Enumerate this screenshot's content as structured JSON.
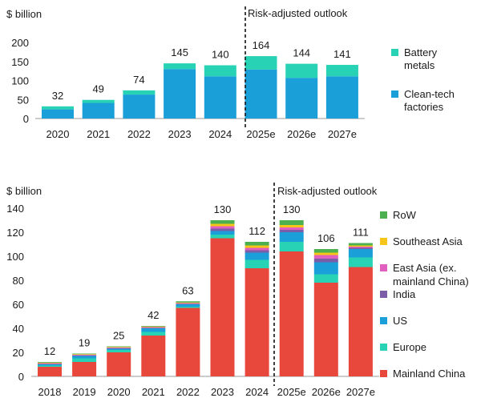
{
  "chart_data": [
    {
      "type": "bar",
      "stacked": true,
      "ylabel": "$ billion",
      "ylim": [
        0,
        200
      ],
      "yticks": [
        0,
        50,
        100,
        150,
        200
      ],
      "categories": [
        "2020",
        "2021",
        "2022",
        "2023",
        "2024",
        "2025e",
        "2026e",
        "2027e"
      ],
      "totals": [
        32,
        49,
        74,
        145,
        140,
        164,
        144,
        141
      ],
      "outlook_label": "Risk-adjusted outlook",
      "outlook_starts_at": "2025e",
      "legend_position": "right",
      "series": [
        {
          "name": "Clean-tech factories",
          "color": "#1a9fd9",
          "values": [
            24,
            41,
            63,
            130,
            111,
            129,
            107,
            111
          ]
        },
        {
          "name": "Battery metals",
          "color": "#27d3b4",
          "values": [
            8,
            8,
            11,
            15,
            29,
            35,
            37,
            30
          ]
        }
      ],
      "legend": [
        {
          "label_lines": [
            "Battery",
            "metals"
          ],
          "color": "#27d3b4"
        },
        {
          "label_lines": [
            "Clean-tech",
            "factories"
          ],
          "color": "#1a9fd9"
        }
      ]
    },
    {
      "type": "bar",
      "stacked": true,
      "ylabel": "$ billion",
      "ylim": [
        0,
        140
      ],
      "yticks": [
        0,
        20,
        40,
        60,
        80,
        100,
        120,
        140
      ],
      "categories": [
        "2018",
        "2019",
        "2020",
        "2021",
        "2022",
        "2023",
        "2024",
        "2025e",
        "2026e",
        "2027e"
      ],
      "totals": [
        12,
        19,
        25,
        42,
        63,
        130,
        112,
        130,
        106,
        111
      ],
      "outlook_label": "Risk-adjusted outlook",
      "outlook_starts_at": "2025e",
      "legend_position": "right",
      "series": [
        {
          "name": "Mainland China",
          "color": "#e8473b",
          "values": [
            8,
            12,
            20,
            34,
            57,
            115,
            90,
            104,
            78,
            91
          ]
        },
        {
          "name": "Europe",
          "color": "#27d3b4",
          "values": [
            1,
            3,
            2,
            3,
            1,
            3,
            7,
            8,
            7,
            8
          ]
        },
        {
          "name": "US",
          "color": "#1a9fd9",
          "values": [
            1,
            2,
            1,
            3,
            2,
            3,
            6,
            8,
            10,
            7
          ]
        },
        {
          "name": "India",
          "color": "#7b5ea7",
          "values": [
            0.5,
            0.5,
            0.5,
            0.5,
            0.5,
            2,
            2,
            2,
            3,
            1
          ]
        },
        {
          "name": "East Asia (ex. mainland China)",
          "color": "#e15fbe",
          "values": [
            0.5,
            0.5,
            0.5,
            0.5,
            0.5,
            2,
            2,
            2,
            3,
            1
          ]
        },
        {
          "name": "Southeast Asia",
          "color": "#f5c518",
          "values": [
            0.5,
            0.5,
            0.5,
            0.5,
            0.5,
            2,
            2,
            2,
            2,
            1
          ]
        },
        {
          "name": "RoW",
          "color": "#4caf50",
          "values": [
            0.5,
            0.5,
            0.5,
            0.5,
            1,
            3,
            3,
            4,
            3,
            2
          ]
        }
      ],
      "legend": [
        {
          "label_lines": [
            "RoW"
          ],
          "color": "#4caf50"
        },
        {
          "label_lines": [
            "Southeast Asia"
          ],
          "color": "#f5c518"
        },
        {
          "label_lines": [
            "East Asia (ex.",
            "mainland China)"
          ],
          "color": "#e15fbe"
        },
        {
          "label_lines": [
            "India"
          ],
          "color": "#7b5ea7"
        },
        {
          "label_lines": [
            "US"
          ],
          "color": "#1a9fd9"
        },
        {
          "label_lines": [
            "Europe"
          ],
          "color": "#27d3b4"
        },
        {
          "label_lines": [
            "Mainland China"
          ],
          "color": "#e8473b"
        }
      ]
    }
  ]
}
